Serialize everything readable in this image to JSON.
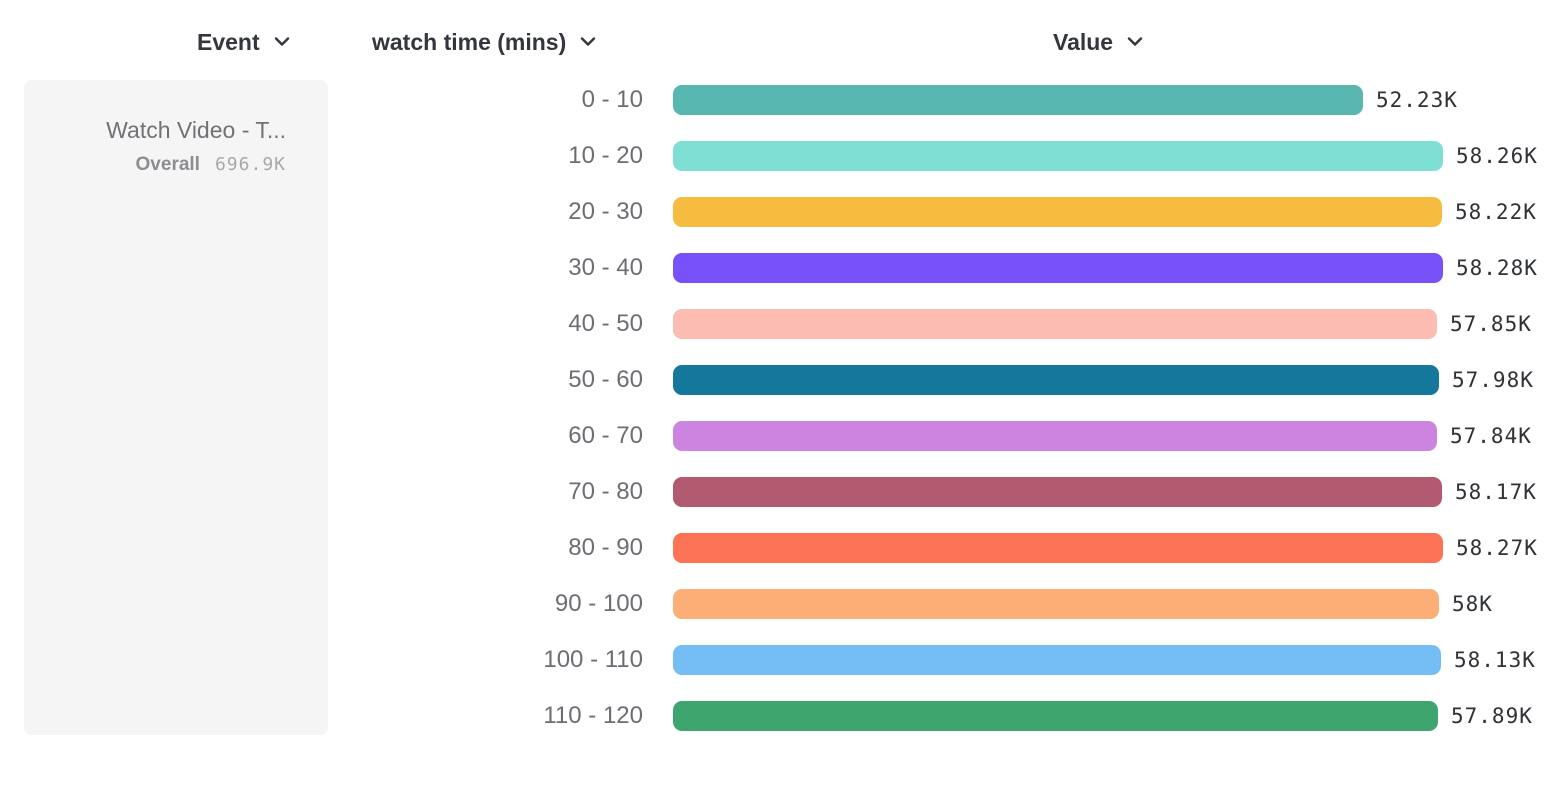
{
  "header": {
    "event_label": "Event",
    "breakdown_label": "watch time (mins)",
    "value_label": "Value"
  },
  "event_card": {
    "title": "Watch Video - T...",
    "overall_label": "Overall",
    "overall_value": "696.9K"
  },
  "chart_data": {
    "type": "bar",
    "orientation": "horizontal",
    "title": "",
    "xlabel": "Value",
    "ylabel": "watch time (mins)",
    "xlim": [
      0,
      58280
    ],
    "grid": false,
    "legend_position": "left",
    "series_name": "Watch Video - T... (Overall 696.9K)",
    "categories": [
      "0 - 10",
      "10 - 20",
      "20 - 30",
      "30 - 40",
      "40 - 50",
      "50 - 60",
      "60 - 70",
      "70 - 80",
      "80 - 90",
      "90 - 100",
      "100 - 110",
      "110 - 120"
    ],
    "values": [
      52230,
      58260,
      58220,
      58280,
      57850,
      57980,
      57840,
      58170,
      58270,
      58000,
      58130,
      57890
    ],
    "value_labels": [
      "52.23K",
      "58.26K",
      "58.22K",
      "58.28K",
      "57.85K",
      "57.98K",
      "57.84K",
      "58.17K",
      "58.27K",
      "58K",
      "58.13K",
      "57.89K"
    ],
    "colors": [
      "#58b7ae",
      "#7ee0d4",
      "#f7bb40",
      "#7851f8",
      "#fcbcb2",
      "#14789c",
      "#cc84e0",
      "#b25a70",
      "#fd7356",
      "#fdae77",
      "#74bdf5",
      "#3ea56f"
    ]
  }
}
